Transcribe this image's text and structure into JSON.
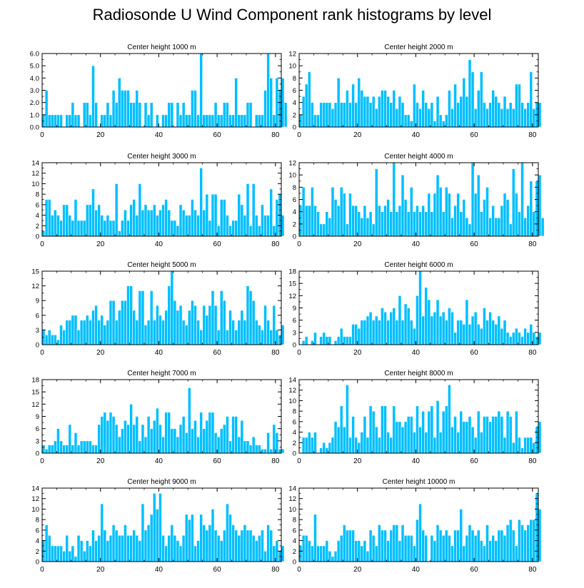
{
  "title": "Radiosonde U Wind Component rank histograms by level",
  "colors": {
    "bar": "#00BFFF",
    "bar_edge": "#ffffff",
    "axis": "#000000",
    "text": "#000000"
  },
  "chart_data": [
    {
      "type": "bar",
      "title": "Center height 1000 m",
      "xlim": [
        0,
        82
      ],
      "ylim": [
        0,
        6
      ],
      "xticks": [
        0,
        20,
        40,
        60,
        80
      ],
      "yticks": [
        "0.0",
        "1.0",
        "2.0",
        "3.0",
        "4.0",
        "5.0",
        "6.0"
      ],
      "ytick_values": [
        0,
        1,
        2,
        3,
        4,
        5,
        6
      ],
      "values": [
        1,
        3,
        1,
        1,
        1,
        1,
        1,
        0,
        1,
        1,
        2,
        1,
        1,
        0,
        2,
        2,
        1,
        5,
        2,
        0,
        1,
        1,
        2,
        1,
        3,
        2,
        4,
        3,
        3,
        3,
        2,
        2,
        3,
        2,
        0,
        2,
        1,
        2,
        0,
        1,
        0,
        1,
        1,
        2,
        2,
        0,
        2,
        1,
        2,
        1,
        1,
        3,
        3,
        1,
        6,
        1,
        1,
        1,
        1,
        2,
        1,
        1,
        2,
        2,
        1,
        1,
        4,
        1,
        1,
        1,
        2,
        2,
        0,
        1,
        1,
        1,
        3,
        6,
        4,
        1,
        4,
        3,
        4,
        2
      ]
    },
    {
      "type": "bar",
      "title": "Center height 2000 m",
      "xlim": [
        0,
        82
      ],
      "ylim": [
        0,
        12
      ],
      "xticks": [
        0,
        20,
        40,
        60,
        80
      ],
      "yticks": [
        "0",
        "2",
        "4",
        "6",
        "8",
        "10",
        "12"
      ],
      "ytick_values": [
        0,
        2,
        4,
        6,
        8,
        10,
        12
      ],
      "values": [
        2,
        5,
        7,
        9,
        4,
        2,
        2,
        4,
        4,
        4,
        4,
        3,
        4,
        8,
        4,
        4,
        6,
        4,
        7,
        4,
        8,
        6,
        5,
        5,
        4,
        5,
        3,
        5,
        6,
        6,
        5,
        4,
        6,
        3,
        5,
        4,
        2,
        2,
        1,
        7,
        4,
        3,
        6,
        4,
        3,
        4,
        1,
        5,
        2,
        1,
        2,
        6,
        3,
        7,
        4,
        5,
        8,
        5,
        11,
        9,
        3,
        6,
        9,
        4,
        3,
        4,
        6,
        5,
        4,
        3,
        5,
        3,
        4,
        3,
        7,
        7,
        4,
        3,
        4,
        9,
        3,
        4,
        4
      ]
    },
    {
      "type": "bar",
      "title": "Center height 3000 m",
      "xlim": [
        0,
        82
      ],
      "ylim": [
        0,
        14
      ],
      "xticks": [
        0,
        20,
        40,
        60,
        80
      ],
      "yticks": [
        "0",
        "2",
        "4",
        "6",
        "8",
        "10",
        "12",
        "14"
      ],
      "ytick_values": [
        0,
        2,
        4,
        6,
        8,
        10,
        12,
        14
      ],
      "values": [
        1,
        7,
        7,
        4,
        5,
        4,
        3,
        6,
        6,
        4,
        3,
        7,
        3,
        3,
        3,
        6,
        6,
        9,
        5,
        6,
        4,
        3,
        4,
        3,
        3,
        10,
        1,
        3,
        5,
        3,
        6,
        7,
        4,
        10,
        5,
        6,
        5,
        5,
        6,
        4,
        5,
        6,
        7,
        5,
        3,
        3,
        2,
        6,
        5,
        4,
        4,
        7,
        5,
        4,
        13,
        5,
        8,
        3,
        8,
        8,
        2,
        7,
        7,
        4,
        2,
        3,
        3,
        8,
        6,
        4,
        10,
        2,
        10,
        4,
        2,
        6,
        4,
        4,
        9,
        2,
        7,
        8,
        4
      ]
    },
    {
      "type": "bar",
      "title": "Center height 4000 m",
      "xlim": [
        0,
        82
      ],
      "ylim": [
        0,
        12
      ],
      "xticks": [
        0,
        20,
        40,
        60,
        80
      ],
      "yticks": [
        "0",
        "2",
        "4",
        "6",
        "8",
        "10",
        "12"
      ],
      "ytick_values": [
        0,
        2,
        4,
        6,
        8,
        10,
        12
      ],
      "values": [
        5,
        8,
        5,
        5,
        8,
        5,
        4,
        2,
        2,
        4,
        3,
        8,
        6,
        5,
        8,
        7,
        2,
        7,
        5,
        5,
        4,
        3,
        5,
        3,
        4,
        2,
        11,
        5,
        4,
        5,
        6,
        4,
        12,
        4,
        5,
        10,
        6,
        4,
        8,
        4,
        5,
        4,
        5,
        4,
        7,
        4,
        7,
        10,
        8,
        4,
        8,
        7,
        3,
        5,
        7,
        4,
        6,
        3,
        2,
        12,
        7,
        10,
        4,
        6,
        8,
        3,
        5,
        3,
        3,
        5,
        7,
        6,
        2,
        11,
        7,
        4,
        12,
        3,
        5,
        9,
        4,
        9,
        10,
        3
      ]
    },
    {
      "type": "bar",
      "title": "Center height 5000 m",
      "xlim": [
        0,
        82
      ],
      "ylim": [
        0,
        15
      ],
      "xticks": [
        0,
        20,
        40,
        60,
        80
      ],
      "yticks": [
        "0",
        "3",
        "6",
        "9",
        "12",
        "15"
      ],
      "ytick_values": [
        0,
        3,
        6,
        9,
        12,
        15
      ],
      "values": [
        3,
        2,
        3,
        2,
        2,
        1,
        4,
        3,
        5,
        5,
        6,
        6,
        3,
        5,
        5,
        6,
        5,
        7,
        8,
        5,
        6,
        4,
        5,
        9,
        9,
        5,
        7,
        9,
        9,
        12,
        12,
        7,
        5,
        11,
        11,
        4,
        5,
        11,
        5,
        8,
        6,
        5,
        7,
        12,
        15,
        9,
        7,
        8,
        5,
        4,
        7,
        9,
        8,
        5,
        3,
        8,
        6,
        8,
        11,
        8,
        3,
        11,
        9,
        3,
        7,
        5,
        3,
        5,
        7,
        5,
        12,
        11,
        9,
        5,
        4,
        3,
        8,
        5,
        3,
        8,
        3,
        2,
        4
      ]
    },
    {
      "type": "bar",
      "title": "Center height 6000 m",
      "xlim": [
        0,
        82
      ],
      "ylim": [
        0,
        18
      ],
      "xticks": [
        0,
        20,
        40,
        60,
        80
      ],
      "yticks": [
        "0",
        "3",
        "6",
        "9",
        "12",
        "15",
        "18"
      ],
      "ytick_values": [
        0,
        3,
        6,
        9,
        12,
        15,
        18
      ],
      "values": [
        0,
        1,
        2,
        0,
        1,
        3,
        0,
        2,
        3,
        2,
        2,
        0,
        1,
        2,
        4,
        2,
        2,
        2,
        5,
        5,
        4,
        6,
        6,
        7,
        8,
        6,
        7,
        6,
        9,
        8,
        6,
        8,
        9,
        6,
        12,
        6,
        10,
        9,
        6,
        4,
        12,
        18,
        7,
        14,
        11,
        7,
        8,
        11,
        7,
        8,
        6,
        9,
        8,
        3,
        6,
        6,
        5,
        11,
        5,
        7,
        8,
        5,
        4,
        9,
        6,
        8,
        6,
        5,
        7,
        4,
        6,
        3,
        2,
        3,
        4,
        3,
        2,
        4,
        3,
        5,
        3,
        2,
        3
      ]
    },
    {
      "type": "bar",
      "title": "Center height 7000 m",
      "xlim": [
        0,
        82
      ],
      "ylim": [
        0,
        18
      ],
      "xticks": [
        0,
        20,
        40,
        60,
        80
      ],
      "yticks": [
        "0",
        "3",
        "6",
        "9",
        "12",
        "15",
        "18"
      ],
      "ytick_values": [
        0,
        3,
        6,
        9,
        12,
        15,
        18
      ],
      "values": [
        2,
        1,
        2,
        2,
        3,
        6,
        3,
        2,
        2,
        7,
        2,
        5,
        2,
        3,
        3,
        3,
        3,
        2,
        2,
        7,
        9,
        10,
        8,
        10,
        9,
        7,
        4,
        6,
        8,
        7,
        12,
        7,
        9,
        3,
        7,
        4,
        9,
        6,
        8,
        11,
        7,
        4,
        10,
        10,
        6,
        6,
        4,
        7,
        9,
        5,
        16,
        6,
        8,
        4,
        10,
        6,
        8,
        10,
        10,
        5,
        4,
        6,
        7,
        9,
        3,
        9,
        9,
        4,
        8,
        3,
        3,
        2,
        4,
        2,
        2,
        1,
        1,
        5,
        1,
        7,
        5,
        1,
        1
      ]
    },
    {
      "type": "bar",
      "title": "Center height 8000 m",
      "xlim": [
        0,
        82
      ],
      "ylim": [
        0,
        14
      ],
      "xticks": [
        0,
        20,
        40,
        60,
        80
      ],
      "yticks": [
        "0",
        "2",
        "4",
        "6",
        "8",
        "10",
        "12",
        "14"
      ],
      "ytick_values": [
        0,
        2,
        4,
        6,
        8,
        10,
        12,
        14
      ],
      "values": [
        0,
        3,
        3,
        4,
        3,
        4,
        0,
        1,
        2,
        1,
        2,
        3,
        6,
        5,
        9,
        5,
        13,
        3,
        7,
        3,
        2,
        4,
        7,
        3,
        9,
        8,
        5,
        3,
        9,
        9,
        4,
        3,
        9,
        6,
        6,
        5,
        6,
        7,
        7,
        4,
        9,
        5,
        8,
        4,
        8,
        9,
        3,
        10,
        4,
        8,
        9,
        13,
        5,
        7,
        4,
        8,
        6,
        6,
        7,
        5,
        3,
        8,
        4,
        7,
        7,
        6,
        7,
        7,
        8,
        7,
        3,
        8,
        7,
        2,
        8,
        3,
        1,
        3,
        3,
        3,
        2,
        5,
        6
      ]
    },
    {
      "type": "bar",
      "title": "Center height 9000 m",
      "xlim": [
        0,
        82
      ],
      "ylim": [
        0,
        14
      ],
      "xticks": [
        0,
        20,
        40,
        60,
        80
      ],
      "yticks": [
        "0",
        "2",
        "4",
        "6",
        "8",
        "10",
        "12",
        "14"
      ],
      "ytick_values": [
        0,
        2,
        4,
        6,
        8,
        10,
        12,
        14
      ],
      "values": [
        4,
        7,
        5,
        3,
        3,
        3,
        3,
        2,
        5,
        2,
        3,
        1,
        5,
        4,
        2,
        4,
        3,
        6,
        4,
        5,
        11,
        6,
        4,
        5,
        7,
        6,
        5,
        5,
        7,
        5,
        5,
        6,
        5,
        4,
        11,
        6,
        7,
        9,
        13,
        10,
        13,
        5,
        3,
        5,
        7,
        5,
        4,
        3,
        5,
        9,
        8,
        9,
        3,
        4,
        9,
        7,
        6,
        7,
        10,
        6,
        5,
        4,
        6,
        11,
        9,
        7,
        6,
        5,
        6,
        7,
        6,
        6,
        5,
        4,
        5,
        6,
        2,
        7,
        6,
        3,
        4,
        2,
        3
      ]
    },
    {
      "type": "bar",
      "title": "Center height 10000 m",
      "xlim": [
        0,
        82
      ],
      "ylim": [
        0,
        14
      ],
      "xticks": [
        0,
        20,
        40,
        60,
        80
      ],
      "yticks": [
        "0",
        "2",
        "4",
        "6",
        "8",
        "10",
        "12",
        "14"
      ],
      "ytick_values": [
        0,
        2,
        4,
        6,
        8,
        10,
        12,
        14
      ],
      "values": [
        3,
        5,
        5,
        4,
        3,
        9,
        3,
        3,
        3,
        4,
        2,
        1,
        2,
        4,
        5,
        7,
        6,
        6,
        6,
        4,
        4,
        3,
        4,
        2,
        6,
        5,
        3,
        7,
        6,
        6,
        4,
        6,
        7,
        7,
        4,
        7,
        5,
        5,
        5,
        3,
        8,
        11,
        6,
        5,
        0,
        5,
        4,
        7,
        6,
        5,
        6,
        5,
        3,
        6,
        6,
        10,
        3,
        5,
        7,
        6,
        5,
        6,
        4,
        3,
        7,
        4,
        5,
        4,
        6,
        6,
        5,
        7,
        8,
        6,
        3,
        8,
        7,
        6,
        7,
        8,
        8,
        13,
        10
      ]
    }
  ]
}
